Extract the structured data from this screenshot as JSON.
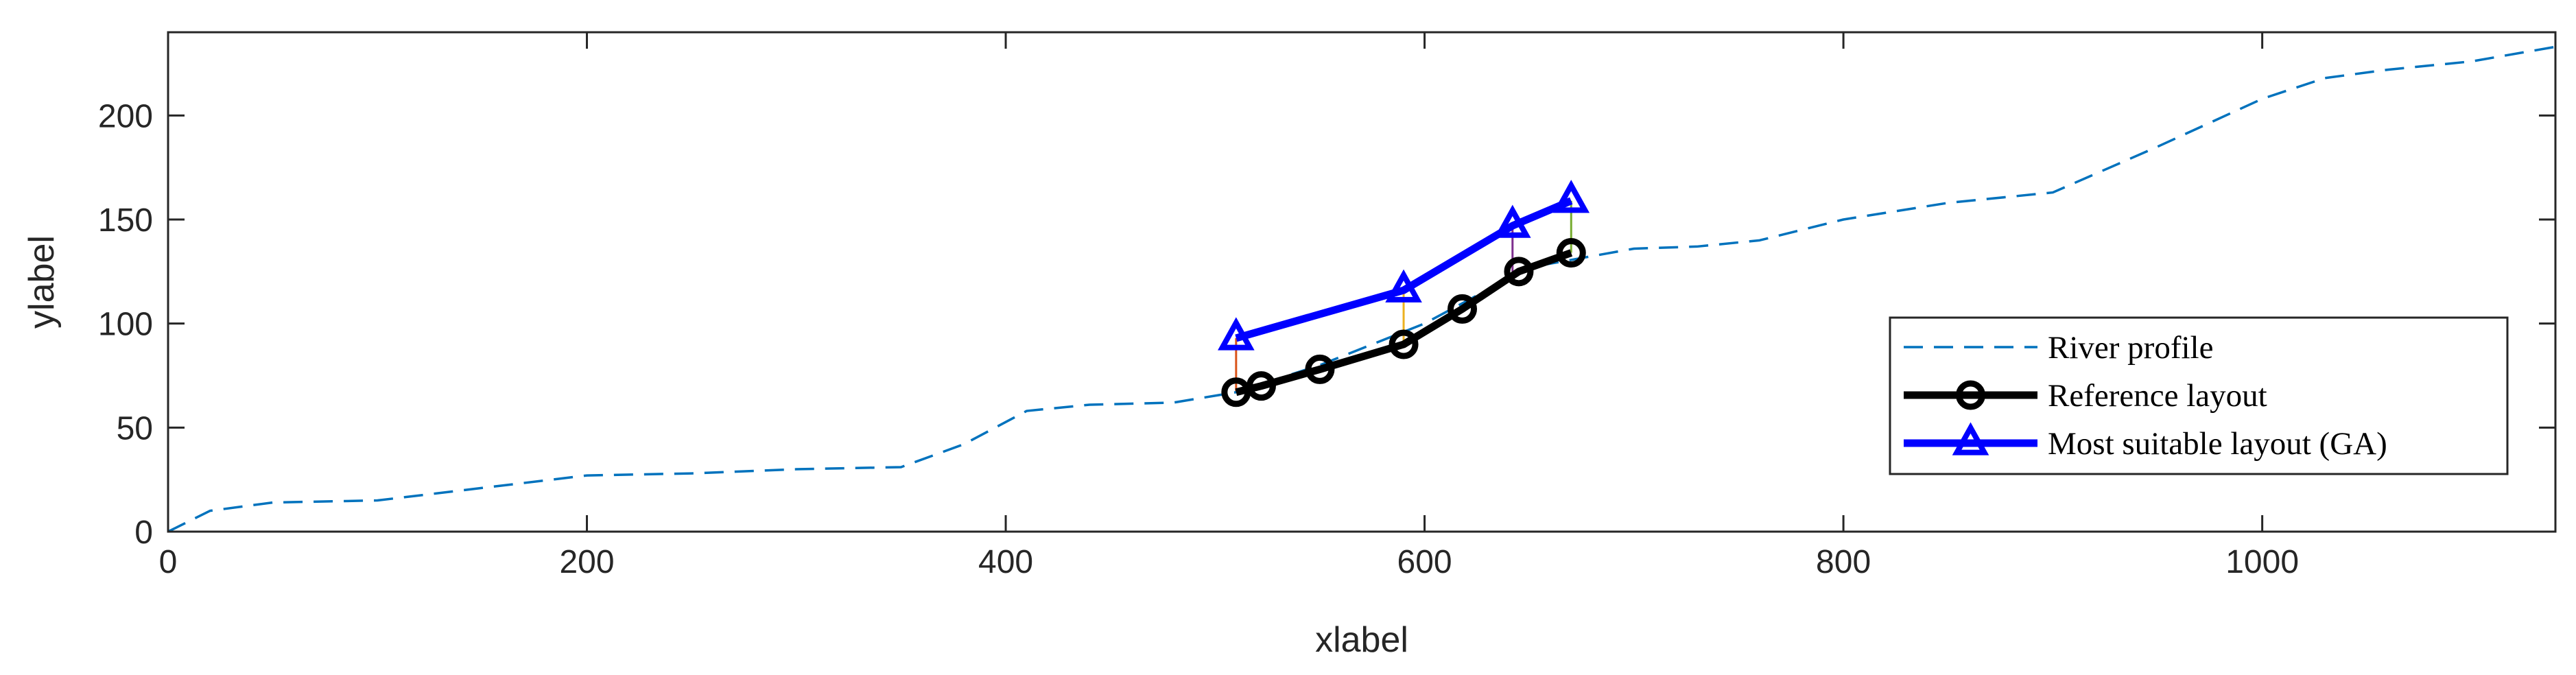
{
  "chart_data": {
    "type": "line",
    "xlabel": "xlabel",
    "ylabel": "ylabel",
    "xlim": [
      0,
      1140
    ],
    "ylim": [
      0,
      240
    ],
    "xticks": [
      0,
      200,
      400,
      600,
      800,
      1000
    ],
    "yticks": [
      0,
      50,
      100,
      150,
      200
    ],
    "xtick_labels": [
      "0",
      "200",
      "400",
      "600",
      "800",
      "1000"
    ],
    "ytick_labels": [
      "0",
      "50",
      "100",
      "150",
      "200"
    ],
    "grid": false,
    "legend_position": "lower-right",
    "series": [
      {
        "name": "River profile",
        "style": "dashed",
        "color": "#0072BD",
        "x": [
          0,
          20,
          50,
          100,
          150,
          200,
          250,
          300,
          350,
          380,
          410,
          440,
          480,
          510,
          550,
          600,
          650,
          700,
          730,
          760,
          800,
          850,
          900,
          950,
          1000,
          1030,
          1060,
          1100,
          1140
        ],
        "y": [
          0,
          10,
          14,
          15,
          21,
          27,
          28,
          30,
          31,
          42,
          58,
          61,
          62,
          67,
          80,
          100,
          127,
          136,
          137,
          140,
          150,
          158,
          163,
          185,
          208,
          218,
          222,
          226,
          233
        ]
      },
      {
        "name": "Reference layout",
        "style": "solid",
        "marker": "circle",
        "color": "#000000",
        "x": [
          510,
          522,
          550,
          590,
          618,
          645,
          670
        ],
        "y": [
          67,
          70,
          78,
          90,
          107,
          125,
          134
        ]
      },
      {
        "name": "Most suitable layout (GA)",
        "style": "solid",
        "marker": "triangle",
        "color": "#0000FF",
        "x": [
          510,
          590,
          642,
          670
        ],
        "y": [
          93,
          116,
          147,
          159
        ]
      }
    ],
    "connectors": [
      {
        "x": 510,
        "y1": 67,
        "y2": 93,
        "color": "#D95319"
      },
      {
        "x": 590,
        "y1": 90,
        "y2": 116,
        "color": "#EDB120"
      },
      {
        "x": 642,
        "y1": 125,
        "y2": 147,
        "color": "#7E2F8E"
      },
      {
        "x": 670,
        "y1": 134,
        "y2": 159,
        "color": "#77AC30"
      }
    ],
    "legend": [
      "River profile",
      "Reference layout",
      "Most suitable layout (GA)"
    ]
  }
}
